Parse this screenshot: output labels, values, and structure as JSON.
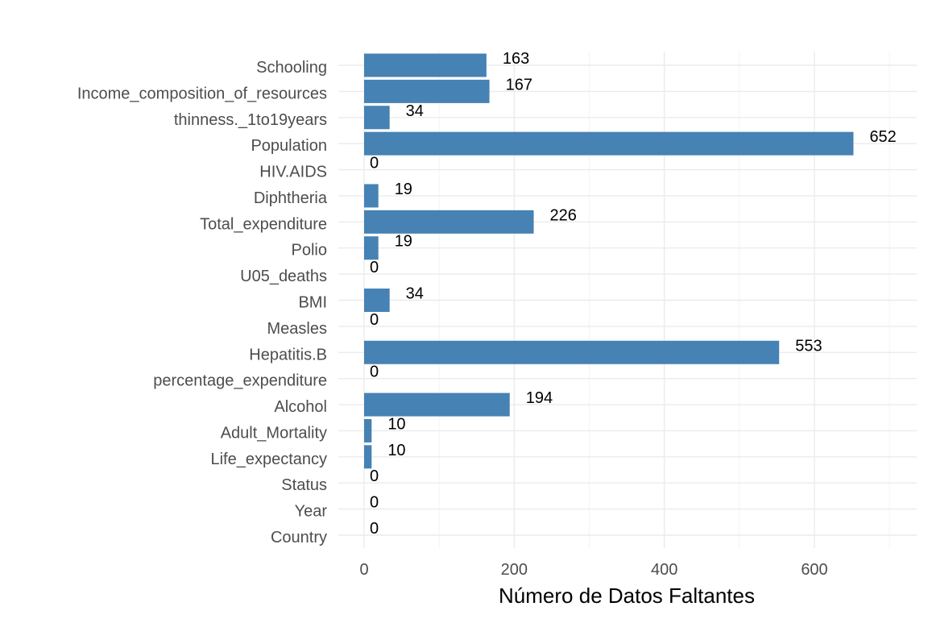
{
  "chart_data": {
    "type": "bar",
    "orientation": "horizontal",
    "title": "",
    "xlabel": "Número de Datos Faltantes",
    "ylabel": "",
    "xlim": [
      0,
      735
    ],
    "x_ticks": [
      0,
      200,
      400,
      600
    ],
    "grid": true,
    "legend": "none",
    "bar_color": "#4682B4",
    "data_labels": true,
    "categories": [
      "Schooling",
      "Income_composition_of_resources",
      "thinness._1to19years",
      "Population",
      "HIV.AIDS",
      "Diphtheria",
      "Total_expenditure",
      "Polio",
      "U05_deaths",
      "BMI",
      "Measles",
      "Hepatitis.B",
      "percentage_expenditure",
      "Alcohol",
      "Adult_Mortality",
      "Life_expectancy",
      "Status",
      "Year",
      "Country"
    ],
    "values": [
      163,
      167,
      34,
      652,
      0,
      19,
      226,
      19,
      0,
      34,
      0,
      553,
      0,
      194,
      10,
      10,
      0,
      0,
      0
    ]
  }
}
